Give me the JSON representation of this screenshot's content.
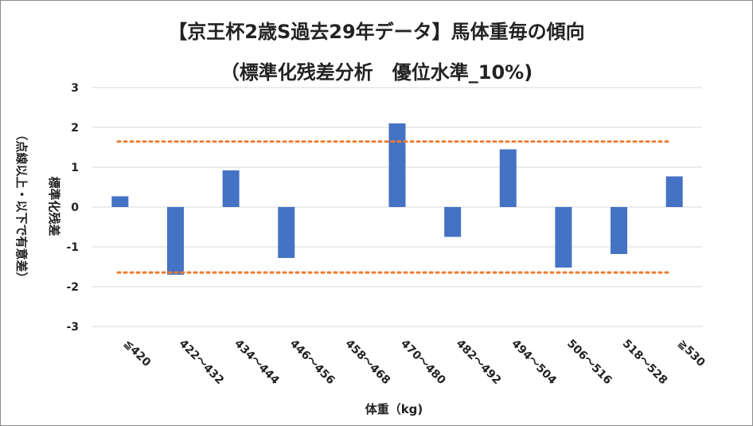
{
  "chart_data": {
    "type": "bar",
    "title": "【京王杯2歳S過去29年データ】馬体重毎の傾向",
    "subtitle": "（標準化残差分析　優位水準_10%)",
    "xlabel": "体重（kg)",
    "ylabel_main": "標準化残差",
    "ylabel_note": "（点線以上・以下で有意差）",
    "categories": [
      "≦420",
      "422～432",
      "434～444",
      "446～456",
      "458～468",
      "470～480",
      "482～492",
      "494～504",
      "506～516",
      "518～528",
      "≧530"
    ],
    "series": [
      {
        "values": [
          0.27,
          -1.7,
          0.92,
          -1.28,
          0.0,
          2.1,
          -0.75,
          1.45,
          -1.52,
          -1.18,
          0.77
        ]
      }
    ],
    "ylim": [
      -3,
      3
    ],
    "yticks": [
      3,
      2,
      1,
      0,
      -1,
      -2,
      -3
    ],
    "threshold_upper": 1.645,
    "threshold_lower": -1.645,
    "grid": true,
    "colors": {
      "bar": "#4472c4",
      "threshold": "#ed7d31",
      "grid": "#d9d9d9"
    }
  }
}
